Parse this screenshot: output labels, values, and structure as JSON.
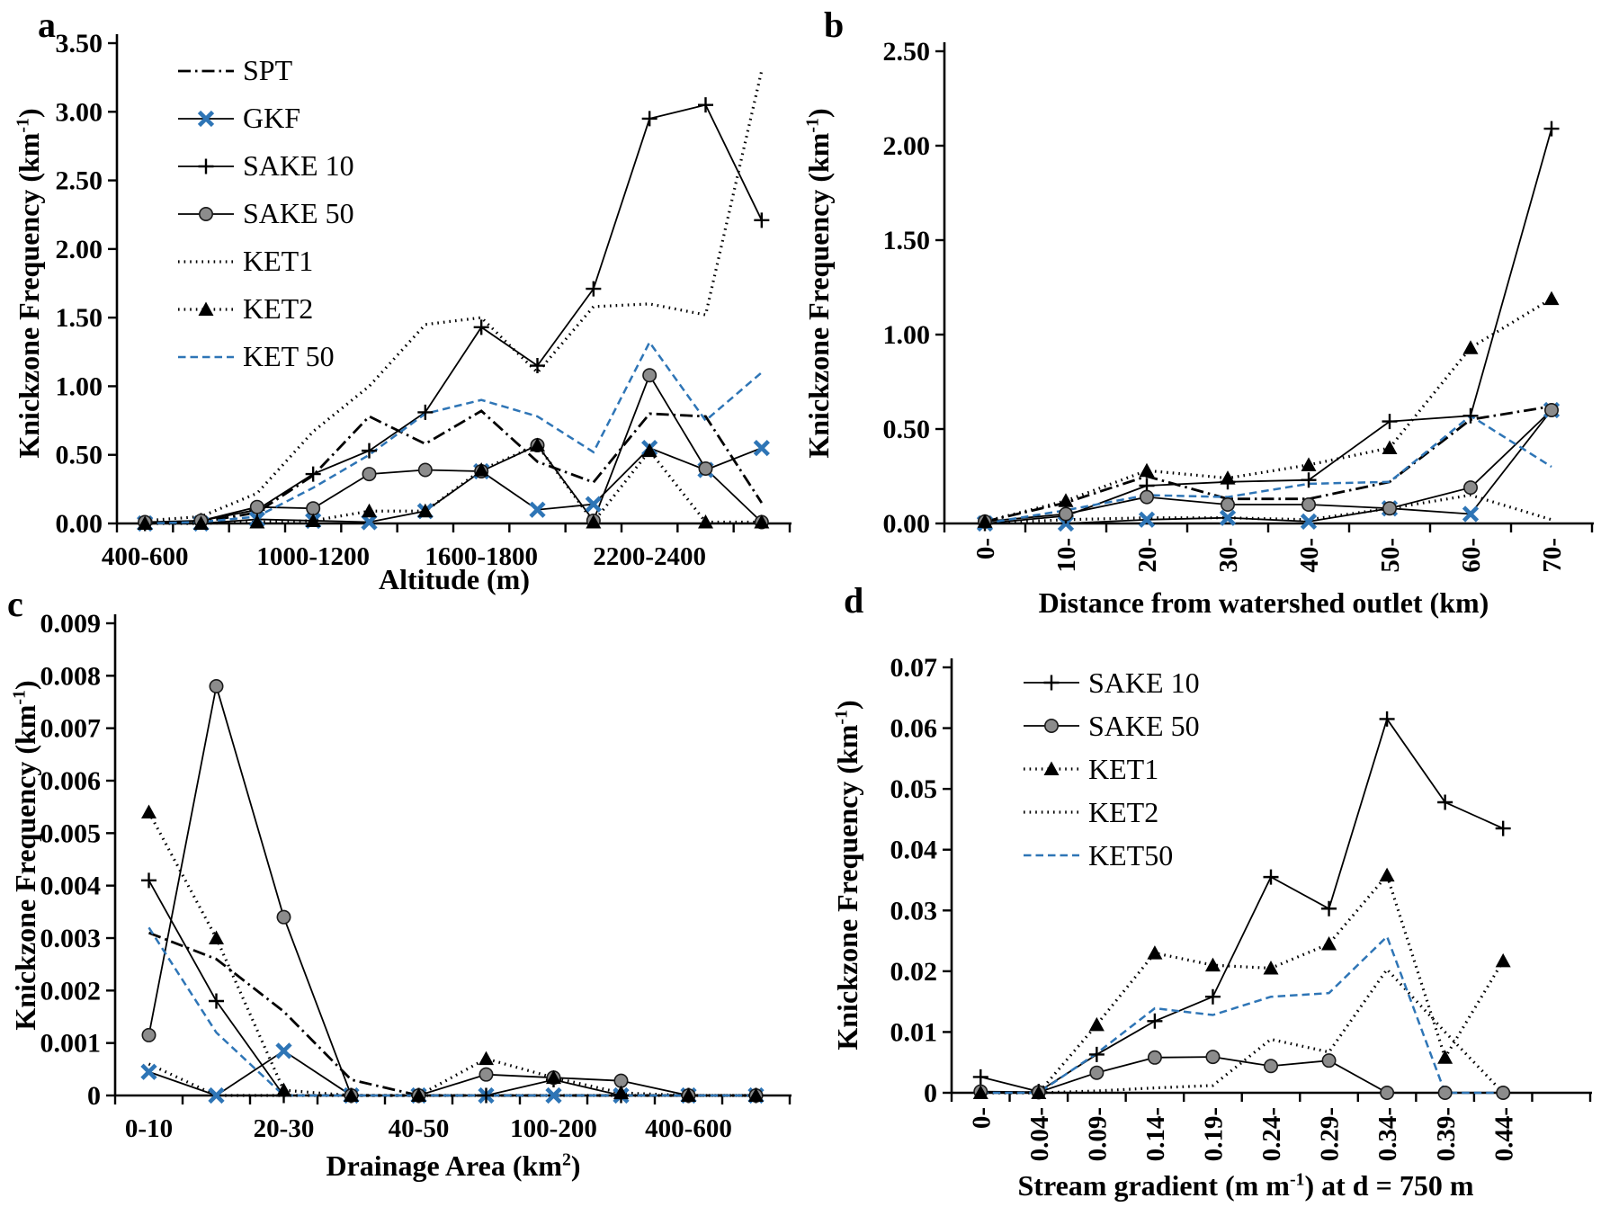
{
  "figure": {
    "background": "#ffffff",
    "text_color": "#000000",
    "accent_blue": "#2E75B6",
    "marker_gray": "#8C8C8C",
    "line_black": "#000000"
  },
  "chart_data": [
    {
      "panel_label": "a",
      "type": "line",
      "title": "",
      "xlabel_pre": "Altitude (m)",
      "xlabel_sup": "",
      "xlabel_post": "",
      "ylabel_pre": "Knickzone Frequency (km",
      "ylabel_sup": "-1",
      "ylabel_post": ")",
      "ylim": [
        0,
        3.5
      ],
      "ytick_values": [
        0,
        0.5,
        1.0,
        1.5,
        2.0,
        2.5,
        3.0,
        3.5
      ],
      "ytick_labels": [
        "0.00",
        "0.50",
        "1.00",
        "1.50",
        "2.00",
        "2.50",
        "3.00",
        "3.50"
      ],
      "xtick_rotated": false,
      "grid": false,
      "legend_position": "upper-left-inside",
      "categories": [
        "400-600",
        "",
        "",
        "1000-1200",
        "",
        "",
        "1600-1800",
        "",
        "",
        "2200-2400",
        "",
        ""
      ],
      "series": [
        {
          "name": "SPT",
          "line": "dashdot",
          "marker": "none",
          "color": "#000000",
          "marker_color": "#000000",
          "values": [
            0,
            0.01,
            0.08,
            0.35,
            0.78,
            0.58,
            0.82,
            0.45,
            0.3,
            0.8,
            0.78,
            0.15
          ]
        },
        {
          "name": "GKF",
          "line": "solid",
          "marker": "x",
          "color": "#000000",
          "marker_color": "#2E75B6",
          "values": [
            0,
            0,
            0.03,
            0.02,
            0.01,
            0.09,
            0.38,
            0.1,
            0.14,
            0.55,
            0.39,
            0.55
          ]
        },
        {
          "name": "SAKE 10",
          "line": "solid",
          "marker": "plus",
          "color": "#000000",
          "marker_color": "#000000",
          "values": [
            0,
            0.02,
            0.1,
            0.36,
            0.53,
            0.81,
            1.43,
            1.15,
            1.71,
            2.95,
            3.05,
            2.21
          ]
        },
        {
          "name": "SAKE 50",
          "line": "solid",
          "marker": "circle",
          "color": "#000000",
          "marker_color": "#8C8C8C",
          "values": [
            0.01,
            0.02,
            0.12,
            0.11,
            0.36,
            0.39,
            0.38,
            0.57,
            0.02,
            1.08,
            0.4,
            0.01
          ]
        },
        {
          "name": "KET1",
          "line": "dotted",
          "marker": "none",
          "color": "#000000",
          "marker_color": "#000000",
          "values": [
            0.02,
            0.05,
            0.22,
            0.67,
            1.0,
            1.45,
            1.5,
            1.1,
            1.58,
            1.6,
            1.52,
            3.3
          ]
        },
        {
          "name": "KET2",
          "line": "dotted",
          "marker": "triangle",
          "color": "#000000",
          "marker_color": "#000000",
          "values": [
            0,
            0,
            0.01,
            0.02,
            0.09,
            0.09,
            0.39,
            0.57,
            0.01,
            0.53,
            0.01,
            0.01
          ]
        },
        {
          "name": "KET 50",
          "line": "dashed",
          "marker": "none",
          "color": "#2E75B6",
          "marker_color": "#2E75B6",
          "values": [
            0,
            0.01,
            0.05,
            0.26,
            0.5,
            0.8,
            0.9,
            0.78,
            0.52,
            1.32,
            0.75,
            1.1
          ]
        }
      ],
      "legend": [
        {
          "label": "SPT",
          "series": 0
        },
        {
          "label": "GKF",
          "series": 1
        },
        {
          "label": "SAKE 10",
          "series": 2
        },
        {
          "label": "SAKE 50",
          "series": 3
        },
        {
          "label": "KET1",
          "series": 4
        },
        {
          "label": "KET2",
          "series": 5
        },
        {
          "label": "KET 50",
          "series": 6
        }
      ]
    },
    {
      "panel_label": "b",
      "type": "line",
      "title": "",
      "xlabel_pre": "Distance from watershed outlet (km)",
      "xlabel_sup": "",
      "xlabel_post": "",
      "ylabel_pre": "Knickzone Frequency (km",
      "ylabel_sup": "-1",
      "ylabel_post": ")",
      "ylim": [
        0,
        2.5
      ],
      "ytick_values": [
        0,
        0.5,
        1.0,
        1.5,
        2.0,
        2.5
      ],
      "ytick_labels": [
        "0.00",
        "0.50",
        "1.00",
        "1.50",
        "2.00",
        "2.50"
      ],
      "xtick_rotated": true,
      "grid": false,
      "legend_position": "none",
      "categories": [
        "0-",
        "10-",
        "20-",
        "30-",
        "40-",
        "50-",
        "60-",
        "70-"
      ],
      "series": [
        {
          "name": "SPT",
          "line": "dashdot",
          "marker": "none",
          "color": "#000000",
          "marker_color": "#000000",
          "values": [
            0.01,
            0.11,
            0.25,
            0.13,
            0.13,
            0.22,
            0.55,
            0.62
          ]
        },
        {
          "name": "GKF",
          "line": "solid",
          "marker": "x",
          "color": "#000000",
          "marker_color": "#2E75B6",
          "values": [
            0,
            0,
            0.02,
            0.03,
            0.01,
            0.08,
            0.05,
            0.6
          ]
        },
        {
          "name": "SAKE 10",
          "line": "solid",
          "marker": "plus",
          "color": "#000000",
          "marker_color": "#000000",
          "values": [
            0,
            0.04,
            0.2,
            0.22,
            0.23,
            0.54,
            0.57,
            2.09
          ]
        },
        {
          "name": "SAKE 50",
          "line": "solid",
          "marker": "circle",
          "color": "#000000",
          "marker_color": "#8C8C8C",
          "values": [
            0.01,
            0.05,
            0.14,
            0.1,
            0.1,
            0.08,
            0.19,
            0.6
          ]
        },
        {
          "name": "KET1",
          "line": "dotted",
          "marker": "triangle",
          "color": "#000000",
          "marker_color": "#000000",
          "values": [
            0.01,
            0.12,
            0.28,
            0.24,
            0.31,
            0.4,
            0.93,
            1.19
          ]
        },
        {
          "name": "KET2",
          "line": "dotted",
          "marker": "none",
          "color": "#000000",
          "marker_color": "#000000",
          "values": [
            0,
            0.02,
            0.03,
            0.03,
            0.02,
            0.08,
            0.15,
            0.02
          ]
        },
        {
          "name": "KET 50",
          "line": "dashed",
          "marker": "none",
          "color": "#2E75B6",
          "marker_color": "#2E75B6",
          "values": [
            0,
            0.07,
            0.15,
            0.14,
            0.21,
            0.22,
            0.57,
            0.3
          ]
        }
      ],
      "legend": []
    },
    {
      "panel_label": "c",
      "type": "line",
      "title": "",
      "xlabel_pre": "Drainage Area (km",
      "xlabel_sup": "2",
      "xlabel_post": ")",
      "ylabel_pre": "Knickzone Frequency (km",
      "ylabel_sup": "-1",
      "ylabel_post": ")",
      "ylim": [
        0,
        0.009
      ],
      "ytick_values": [
        0,
        0.001,
        0.002,
        0.003,
        0.004,
        0.005,
        0.006,
        0.007,
        0.008,
        0.009
      ],
      "ytick_labels": [
        "0",
        "0.001",
        "0.002",
        "0.003",
        "0.004",
        "0.005",
        "0.006",
        "0.007",
        "0.008",
        "0.009"
      ],
      "xtick_rotated": false,
      "grid": false,
      "legend_position": "none",
      "categories": [
        "0-10",
        "",
        "20-30",
        "",
        "40-50",
        "",
        "100-200",
        "",
        "400-600",
        ""
      ],
      "series": [
        {
          "name": "SPT",
          "line": "dashdot",
          "marker": "none",
          "color": "#000000",
          "marker_color": "#000000",
          "values": [
            0.0031,
            0.0026,
            0.0016,
            0.0003,
            0,
            0,
            0,
            0,
            0,
            0
          ]
        },
        {
          "name": "GKF",
          "line": "solid",
          "marker": "x",
          "color": "#000000",
          "marker_color": "#2E75B6",
          "values": [
            0.00045,
            0,
            0.00085,
            0,
            0,
            0,
            0,
            0,
            0,
            0
          ]
        },
        {
          "name": "SAKE 10",
          "line": "solid",
          "marker": "plus",
          "color": "#000000",
          "marker_color": "#000000",
          "values": [
            0.0041,
            0.0018,
            0,
            0,
            0,
            0,
            0.0003,
            0,
            0,
            0
          ]
        },
        {
          "name": "SAKE 50",
          "line": "solid",
          "marker": "circle",
          "color": "#000000",
          "marker_color": "#8C8C8C",
          "values": [
            0.00115,
            0.0078,
            0.0034,
            0,
            0,
            0.0004,
            0.00034,
            0.00028,
            0,
            0
          ]
        },
        {
          "name": "KET1",
          "line": "dotted",
          "marker": "triangle",
          "color": "#000000",
          "marker_color": "#000000",
          "values": [
            0.0054,
            0.003,
            0.0001,
            0,
            0,
            0.0007,
            0.00034,
            5e-05,
            0,
            0
          ]
        },
        {
          "name": "KET2",
          "line": "dotted",
          "marker": "none",
          "color": "#000000",
          "marker_color": "#000000",
          "values": [
            0.0006,
            0,
            0,
            0,
            0,
            0,
            0,
            0,
            0,
            0
          ]
        },
        {
          "name": "KET 50",
          "line": "dashed",
          "marker": "none",
          "color": "#2E75B6",
          "marker_color": "#2E75B6",
          "values": [
            0.0032,
            0.0012,
            0,
            0,
            0,
            0,
            0,
            0,
            0,
            0
          ]
        }
      ],
      "legend": []
    },
    {
      "panel_label": "d",
      "type": "line",
      "title": "",
      "xlabel_pre": "Stream gradient (m m",
      "xlabel_sup": "-1",
      "xlabel_post": ") at  d = 750 m",
      "ylabel_pre": "Knickzone Frequency (km",
      "ylabel_sup": "-1",
      "ylabel_post": ")",
      "ylim": [
        0,
        0.07
      ],
      "ytick_values": [
        0,
        0.01,
        0.02,
        0.03,
        0.04,
        0.05,
        0.06,
        0.07
      ],
      "ytick_labels": [
        "0",
        "0.01",
        "0.02",
        "0.03",
        "0.04",
        "0.05",
        "0.06",
        "0.07"
      ],
      "xtick_rotated": true,
      "grid": false,
      "legend_position": "upper-left-inside",
      "categories": [
        "0-",
        "0.04-",
        "0.09-",
        "0.14-",
        "0.19-",
        "0.24-",
        "0.29-",
        "0.34-",
        "0.39-",
        "0.44-"
      ],
      "series": [
        {
          "name": "SAKE 10",
          "line": "solid",
          "marker": "plus",
          "color": "#000000",
          "marker_color": "#000000",
          "values": [
            0.0026,
            0.0002,
            0.0063,
            0.0118,
            0.0158,
            0.0355,
            0.0303,
            0.0615,
            0.0478,
            0.0435
          ]
        },
        {
          "name": "SAKE 50",
          "line": "solid",
          "marker": "circle",
          "color": "#000000",
          "marker_color": "#8C8C8C",
          "values": [
            0.0002,
            0.0001,
            0.0033,
            0.0058,
            0.0059,
            0.0044,
            0.0053,
            0,
            0,
            0
          ]
        },
        {
          "name": "KET1",
          "line": "dotted",
          "marker": "triangle",
          "color": "#000000",
          "marker_color": "#000000",
          "values": [
            0,
            0,
            0.0112,
            0.023,
            0.021,
            0.0205,
            0.0245,
            0.0358,
            0.0058,
            0.0217
          ]
        },
        {
          "name": "KET2",
          "line": "dotted",
          "marker": "none",
          "color": "#000000",
          "marker_color": "#000000",
          "values": [
            0,
            0,
            0.0003,
            0.0008,
            0.0012,
            0.0088,
            0.0067,
            0.0203,
            0.01,
            0
          ]
        },
        {
          "name": "KET50",
          "line": "dashed",
          "marker": "none",
          "color": "#2E75B6",
          "marker_color": "#2E75B6",
          "values": [
            0,
            0,
            0.0065,
            0.0139,
            0.0128,
            0.0158,
            0.0164,
            0.0257,
            0,
            0
          ]
        }
      ],
      "legend": [
        {
          "label": "SAKE 10",
          "series": 0
        },
        {
          "label": "SAKE 50",
          "series": 1
        },
        {
          "label": "KET1",
          "series": 2
        },
        {
          "label": "KET2",
          "series": 3
        },
        {
          "label": "KET50",
          "series": 4
        }
      ]
    }
  ]
}
